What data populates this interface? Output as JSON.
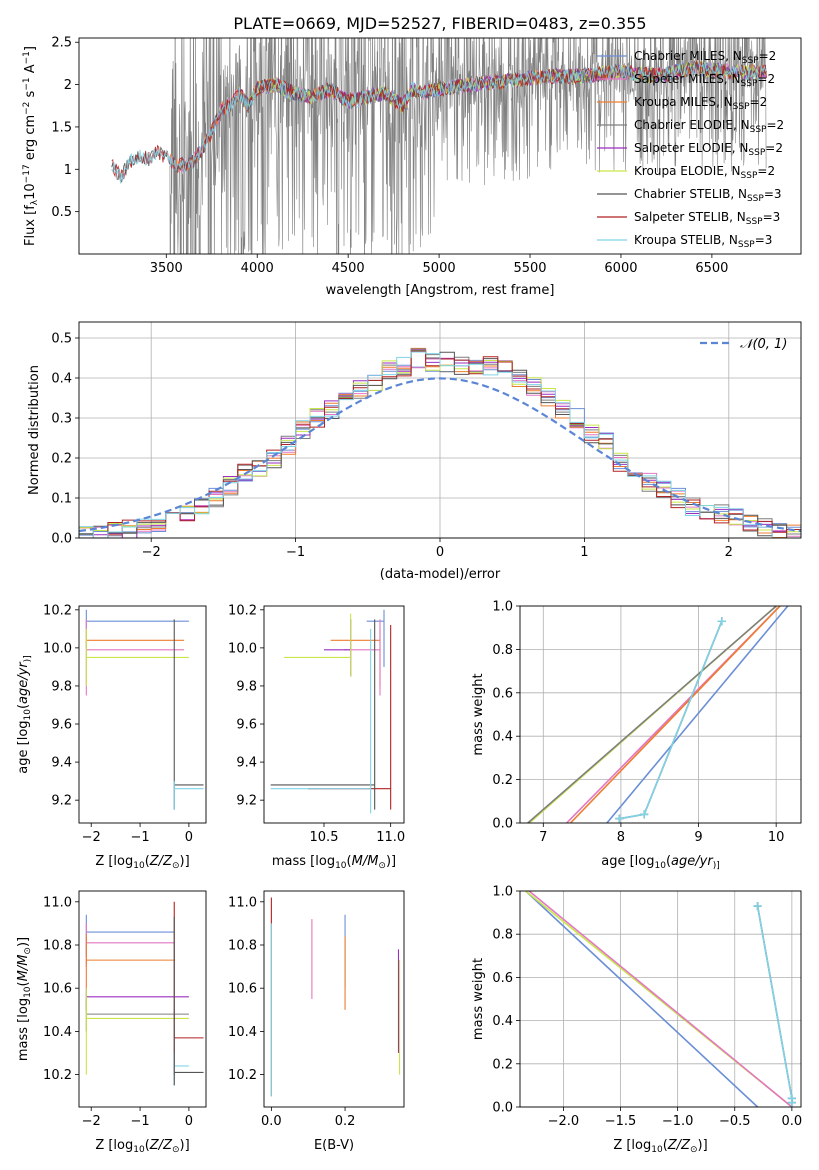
{
  "figure": {
    "title": "PLATE=0669, MJD=52527, FIBERID=0483, z=0.355"
  },
  "colors": {
    "Chabrier MILES": "#6b8fd6",
    "Salpeter MILES": "#e377c2",
    "Kroupa MILES": "#ee7d2f",
    "Chabrier ELODIE": "#7f7f7f",
    "Salpeter ELODIE": "#9b2fc0",
    "Kroupa ELODIE": "#c7e64a",
    "Chabrier STELIB": "#555555",
    "Salpeter STELIB": "#b22222",
    "Kroupa STELIB": "#7fd3e6",
    "data": "#808080",
    "gaussian": "#5b86d6"
  },
  "chart_data": [
    {
      "id": "spectrum",
      "type": "line",
      "xlabel": "wavelength [Angstrom, rest frame]",
      "ylabel_parts": [
        "Flux [f",
        "λ",
        "10",
        "−17",
        " erg cm",
        "−2",
        " s",
        "−1",
        " A",
        "−1",
        "]"
      ],
      "xlim": [
        3020,
        6990
      ],
      "ylim": [
        0.0,
        2.55
      ],
      "xticks": [
        3500,
        4000,
        4500,
        5000,
        5500,
        6000,
        6500
      ],
      "yticks": [
        0.5,
        1.0,
        1.5,
        2.0,
        2.5
      ],
      "legend_position": "top-right",
      "legend": [
        {
          "name": "Chabrier MILES",
          "nssp": "2"
        },
        {
          "name": "Salpeter MILES",
          "nssp": "2"
        },
        {
          "name": "Kroupa MILES",
          "nssp": "2"
        },
        {
          "name": "Chabrier ELODIE",
          "nssp": "2"
        },
        {
          "name": "Salpeter ELODIE",
          "nssp": "2"
        },
        {
          "name": "Kroupa ELODIE",
          "nssp": "2"
        },
        {
          "name": "Chabrier STELIB",
          "nssp": "3"
        },
        {
          "name": "Salpeter STELIB",
          "nssp": "3"
        },
        {
          "name": "Kroupa STELIB",
          "nssp": "3"
        }
      ],
      "model_continuum": [
        [
          3200,
          1.05
        ],
        [
          3250,
          0.9
        ],
        [
          3300,
          1.1
        ],
        [
          3350,
          1.15
        ],
        [
          3400,
          1.12
        ],
        [
          3450,
          1.2
        ],
        [
          3500,
          1.15
        ],
        [
          3550,
          1.05
        ],
        [
          3600,
          1.05
        ],
        [
          3650,
          1.1
        ],
        [
          3700,
          1.25
        ],
        [
          3750,
          1.45
        ],
        [
          3800,
          1.7
        ],
        [
          3850,
          1.75
        ],
        [
          3900,
          1.9
        ],
        [
          3950,
          1.75
        ],
        [
          4000,
          1.95
        ],
        [
          4100,
          2.0
        ],
        [
          4200,
          1.9
        ],
        [
          4300,
          1.85
        ],
        [
          4400,
          1.95
        ],
        [
          4500,
          1.8
        ],
        [
          4600,
          1.85
        ],
        [
          4700,
          1.9
        ],
        [
          4800,
          1.75
        ],
        [
          4850,
          1.95
        ],
        [
          4900,
          1.9
        ],
        [
          5000,
          1.95
        ],
        [
          5200,
          2.0
        ],
        [
          5400,
          2.05
        ],
        [
          5600,
          2.1
        ],
        [
          5800,
          2.1
        ],
        [
          6000,
          2.15
        ],
        [
          6200,
          2.1
        ],
        [
          6400,
          2.2
        ],
        [
          6600,
          2.15
        ],
        [
          6800,
          2.15
        ]
      ],
      "data_noise_note": "raw flux spectrum with very large pixel noise beyond 3520 A"
    },
    {
      "id": "residuals",
      "type": "histogram",
      "xlabel": "(data-model)/error",
      "ylabel": "Normed distribution",
      "xlim": [
        -2.5,
        2.5
      ],
      "ylim": [
        0.0,
        0.54
      ],
      "xticks": [
        -2,
        -1,
        0,
        1,
        2
      ],
      "yticks": [
        0.0,
        0.1,
        0.2,
        0.3,
        0.4,
        0.5
      ],
      "grid": true,
      "legend_position": "top-right",
      "legend": [
        {
          "name": "𝒩(0, 1)",
          "style": "dashed"
        }
      ],
      "bin_edges": [
        -2.5,
        -2.4,
        -2.3,
        -2.2,
        -2.1,
        -2.0,
        -1.9,
        -1.8,
        -1.7,
        -1.6,
        -1.5,
        -1.4,
        -1.3,
        -1.2,
        -1.1,
        -1.0,
        -0.9,
        -0.8,
        -0.7,
        -0.6,
        -0.5,
        -0.4,
        -0.3,
        -0.2,
        -0.1,
        0.0,
        0.1,
        0.2,
        0.3,
        0.4,
        0.5,
        0.6,
        0.7,
        0.8,
        0.9,
        1.0,
        1.1,
        1.2,
        1.3,
        1.4,
        1.5,
        1.6,
        1.7,
        1.8,
        1.9,
        2.0,
        2.1,
        2.2,
        2.3,
        2.4,
        2.5
      ],
      "mean_counts": [
        0.01,
        0.01,
        0.02,
        0.02,
        0.03,
        0.04,
        0.05,
        0.06,
        0.08,
        0.1,
        0.13,
        0.16,
        0.17,
        0.2,
        0.23,
        0.27,
        0.3,
        0.32,
        0.35,
        0.37,
        0.39,
        0.42,
        0.43,
        0.45,
        0.44,
        0.44,
        0.43,
        0.42,
        0.43,
        0.42,
        0.4,
        0.38,
        0.35,
        0.32,
        0.3,
        0.26,
        0.24,
        0.19,
        0.17,
        0.14,
        0.12,
        0.1,
        0.08,
        0.07,
        0.06,
        0.05,
        0.04,
        0.03,
        0.02,
        0.01
      ]
    },
    {
      "id": "age_vs_Z",
      "type": "errorbar",
      "xlabel_parts": [
        "Z [log",
        "10",
        "(",
        "Z/Z",
        "⊙",
        ")]"
      ],
      "ylabel_parts": [
        "age  [log",
        "10",
        "(",
        "age/yr",
        ")]"
      ],
      "xlim": [
        -2.25,
        0.35
      ],
      "ylim": [
        9.08,
        10.22
      ],
      "xticks": [
        -2,
        -1,
        0
      ],
      "yticks": [
        9.2,
        9.4,
        9.6,
        9.8,
        10.0,
        10.2
      ],
      "bars": [
        {
          "model": "Chabrier MILES",
          "x": [
            -2.1,
            0.0
          ],
          "y": 10.14,
          "yerr": [
            10.1,
            10.2
          ]
        },
        {
          "model": "Kroupa MILES",
          "x": [
            -2.1,
            -0.1
          ],
          "y": 10.04,
          "yerr": [
            10.0,
            10.1
          ]
        },
        {
          "model": "Salpeter MILES",
          "x": [
            -2.1,
            -0.1
          ],
          "y": 9.99,
          "yerr": [
            9.75,
            10.15
          ]
        },
        {
          "model": "Kroupa ELODIE",
          "x": [
            -2.1,
            0.0
          ],
          "y": 9.95,
          "yerr": [
            9.8,
            10.1
          ]
        },
        {
          "model": "Chabrier STELIB",
          "x": [
            -0.3,
            0.3
          ],
          "y": 9.28,
          "yerr": [
            9.15,
            10.15
          ]
        },
        {
          "model": "Kroupa STELIB",
          "x": [
            -0.3,
            0.3
          ],
          "y": 9.26,
          "yerr": [
            9.15,
            9.3
          ]
        }
      ]
    },
    {
      "id": "age_vs_mass",
      "type": "errorbar",
      "xlabel_parts": [
        "mass [log",
        "10",
        "(",
        "M/M",
        "⊙",
        ")]"
      ],
      "xlim": [
        10.05,
        11.1
      ],
      "ylim": [
        9.08,
        10.22
      ],
      "xticks": [
        10.5,
        11.0
      ],
      "yticks": [
        9.2,
        9.4,
        9.6,
        9.8,
        10.0,
        10.2
      ],
      "bars": [
        {
          "model": "Chabrier MILES",
          "x": [
            10.82,
            10.95
          ],
          "y": 10.14,
          "yerr": [
            9.9,
            10.2
          ]
        },
        {
          "model": "Kroupa MILES",
          "x": [
            10.55,
            10.92
          ],
          "y": 10.04,
          "yerr": [
            9.8,
            10.1
          ]
        },
        {
          "model": "Salpeter MILES",
          "x": [
            10.65,
            10.92
          ],
          "y": 9.99,
          "yerr": [
            9.75,
            10.15
          ]
        },
        {
          "model": "Salpeter ELODIE",
          "x": [
            10.5,
            10.7
          ],
          "y": 9.99,
          "yerr": [
            9.85,
            10.15
          ]
        },
        {
          "model": "Kroupa ELODIE",
          "x": [
            10.2,
            10.7
          ],
          "y": 9.95,
          "yerr": [
            9.85,
            10.18
          ]
        },
        {
          "model": "Salpeter STELIB",
          "x": [
            10.38,
            11.0
          ],
          "y": 9.26,
          "yerr": [
            9.15,
            10.12
          ]
        },
        {
          "model": "Chabrier STELIB",
          "x": [
            10.1,
            10.88
          ],
          "y": 9.28,
          "yerr": [
            9.15,
            10.15
          ]
        },
        {
          "model": "Kroupa STELIB",
          "x": [
            10.1,
            10.85
          ],
          "y": 9.26,
          "yerr": [
            9.13,
            10.1
          ]
        }
      ]
    },
    {
      "id": "weight_vs_age",
      "type": "line",
      "xlabel_parts": [
        "age  [log",
        "10",
        "(",
        "age/yr",
        ")]"
      ],
      "ylabel": "mass weight",
      "xlim": [
        6.7,
        10.32
      ],
      "ylim": [
        0.0,
        1.0
      ],
      "xticks": [
        7,
        8,
        9,
        10
      ],
      "yticks": [
        0.0,
        0.2,
        0.4,
        0.6,
        0.8,
        1.0
      ],
      "grid": true,
      "series": [
        {
          "model": "Chabrier MILES",
          "x": [
            7.82,
            10.15
          ],
          "y": [
            0.0,
            1.0
          ]
        },
        {
          "model": "Salpeter MILES",
          "x": [
            7.3,
            10.05
          ],
          "y": [
            0.0,
            1.0
          ]
        },
        {
          "model": "Kroupa MILES",
          "x": [
            7.35,
            10.05
          ],
          "y": [
            0.0,
            1.0
          ]
        },
        {
          "model": "Kroupa ELODIE",
          "x": [
            6.82,
            10.0
          ],
          "y": [
            0.0,
            1.0
          ]
        },
        {
          "model": "Chabrier ELODIE",
          "x": [
            6.8,
            10.0
          ],
          "y": [
            0.0,
            1.0
          ]
        },
        {
          "model": "Chabrier STELIB",
          "x": [
            7.98,
            8.3,
            9.3
          ],
          "y": [
            0.02,
            0.04,
            0.93
          ]
        },
        {
          "model": "Kroupa STELIB",
          "x": [
            7.98,
            8.3,
            9.3
          ],
          "y": [
            0.02,
            0.04,
            0.93
          ]
        }
      ]
    },
    {
      "id": "mass_vs_Z",
      "type": "errorbar",
      "xlabel_parts": [
        "Z [log",
        "10",
        "(",
        "Z/Z",
        "⊙",
        ")]"
      ],
      "ylabel_parts": [
        "mass [log",
        "10",
        "(",
        "M/M",
        "⊙",
        ")]"
      ],
      "xlim": [
        -2.25,
        0.35
      ],
      "ylim": [
        10.05,
        11.05
      ],
      "xticks": [
        -2,
        -1,
        0
      ],
      "yticks": [
        10.2,
        10.4,
        10.6,
        10.8,
        11.0
      ],
      "bars": [
        {
          "model": "Chabrier MILES",
          "x": [
            -2.1,
            -0.3
          ],
          "y": 10.86,
          "yerr": [
            10.75,
            10.94
          ]
        },
        {
          "model": "Salpeter MILES",
          "x": [
            -2.1,
            -0.3
          ],
          "y": 10.81,
          "yerr": [
            10.7,
            10.9
          ]
        },
        {
          "model": "Kroupa MILES",
          "x": [
            -2.1,
            -0.3
          ],
          "y": 10.73,
          "yerr": [
            10.6,
            10.85
          ]
        },
        {
          "model": "Salpeter ELODIE",
          "x": [
            -2.1,
            -0.0
          ],
          "y": 10.56,
          "yerr": [
            10.5,
            10.6
          ]
        },
        {
          "model": "Chabrier ELODIE",
          "x": [
            -2.1,
            -0.0
          ],
          "y": 10.48,
          "yerr": [
            10.4,
            10.55
          ]
        },
        {
          "model": "Kroupa ELODIE",
          "x": [
            -2.1,
            -0.0
          ],
          "y": 10.46,
          "yerr": [
            10.2,
            10.6
          ]
        },
        {
          "model": "Salpeter STELIB",
          "x": [
            -0.3,
            0.3
          ],
          "y": 10.37,
          "yerr": [
            10.2,
            11.0
          ]
        },
        {
          "model": "Kroupa STELIB",
          "x": [
            -0.3,
            0.0
          ],
          "y": 10.24,
          "yerr": [
            10.15,
            10.3
          ]
        },
        {
          "model": "Chabrier STELIB",
          "x": [
            -0.3,
            0.3
          ],
          "y": 10.21,
          "yerr": [
            10.15,
            10.93
          ]
        }
      ]
    },
    {
      "id": "mass_vs_EBV",
      "type": "errorbar",
      "xlabel": "E(B-V)",
      "xlim": [
        -0.02,
        0.36
      ],
      "ylim": [
        10.05,
        11.05
      ],
      "xticks": [
        0.0,
        0.2
      ],
      "yticks": [
        10.2,
        10.4,
        10.6,
        10.8,
        11.0
      ],
      "bars": [
        {
          "model": "Salpeter STELIB",
          "x": 0.0,
          "yerr": [
            10.1,
            11.02
          ]
        },
        {
          "model": "Kroupa STELIB",
          "x": 0.0,
          "yerr": [
            10.1,
            10.9
          ]
        },
        {
          "model": "Salpeter MILES",
          "x": 0.11,
          "yerr": [
            10.55,
            10.92
          ]
        },
        {
          "model": "Chabrier MILES",
          "x": 0.2,
          "yerr": [
            10.6,
            10.94
          ]
        },
        {
          "model": "Kroupa MILES",
          "x": 0.2,
          "yerr": [
            10.5,
            10.84
          ]
        },
        {
          "model": "Salpeter ELODIE",
          "x": 0.345,
          "yerr": [
            10.3,
            10.78
          ]
        },
        {
          "model": "Kroupa ELODIE",
          "x": 0.348,
          "yerr": [
            10.2,
            10.73
          ]
        }
      ]
    },
    {
      "id": "weight_vs_Z",
      "type": "line",
      "xlabel_parts": [
        "Z [log",
        "10",
        "(",
        "Z/Z",
        "⊙",
        ")]"
      ],
      "ylabel": "mass weight",
      "xlim": [
        -2.38,
        0.08
      ],
      "ylim": [
        0.0,
        1.0
      ],
      "xticks": [
        -2.0,
        -1.5,
        -1.0,
        -0.5,
        0.0
      ],
      "yticks": [
        0.0,
        0.2,
        0.4,
        0.6,
        0.8,
        1.0
      ],
      "grid": true,
      "series": [
        {
          "model": "Chabrier MILES",
          "x": [
            -2.33,
            -0.3
          ],
          "y": [
            1.0,
            0.0
          ]
        },
        {
          "model": "Kroupa ELODIE",
          "x": [
            -2.33,
            0.0
          ],
          "y": [
            1.0,
            0.0
          ]
        },
        {
          "model": "Salpeter MILES",
          "x": [
            -2.3,
            0.0
          ],
          "y": [
            1.0,
            0.0
          ]
        },
        {
          "model": "Chabrier STELIB",
          "x": [
            -0.3,
            -0.0,
            0.0
          ],
          "y": [
            0.93,
            0.04,
            0.02
          ]
        },
        {
          "model": "Kroupa STELIB",
          "x": [
            -0.3,
            -0.0,
            0.0
          ],
          "y": [
            0.93,
            0.04,
            0.02
          ]
        }
      ]
    }
  ]
}
